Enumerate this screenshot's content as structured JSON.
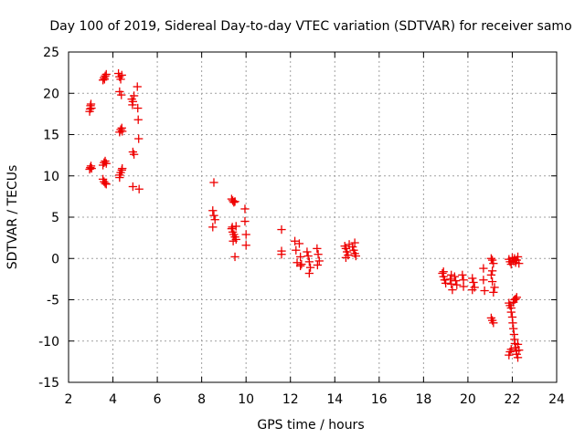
{
  "chart_data": {
    "type": "scatter",
    "title": "Day 100 of 2019, Sidereal Day-to-day VTEC variation (SDTVAR) for receiver samo",
    "xlabel": "GPS time / hours",
    "ylabel": "SDTVAR / TECUs",
    "xlim": [
      2,
      24
    ],
    "ylim": [
      -15,
      25
    ],
    "xticks": [
      2,
      4,
      6,
      8,
      10,
      12,
      14,
      16,
      18,
      20,
      22,
      24
    ],
    "yticks": [
      -15,
      -10,
      -5,
      0,
      5,
      10,
      15,
      20,
      25
    ],
    "grid": true,
    "legend": "none",
    "marker": "plus",
    "color": "#ee0000",
    "series": [
      {
        "name": "SDTVAR",
        "points": [
          [
            2.95,
            17.8
          ],
          [
            2.97,
            18.1
          ],
          [
            2.99,
            18.5
          ],
          [
            3.01,
            18.7
          ],
          [
            3.03,
            18.2
          ],
          [
            2.95,
            10.8
          ],
          [
            2.98,
            11.0
          ],
          [
            3.01,
            11.2
          ],
          [
            3.04,
            10.9
          ],
          [
            3.55,
            21.6
          ],
          [
            3.6,
            21.9
          ],
          [
            3.65,
            22.1
          ],
          [
            3.7,
            22.3
          ],
          [
            3.62,
            21.7
          ],
          [
            3.55,
            11.3
          ],
          [
            3.6,
            11.6
          ],
          [
            3.65,
            11.8
          ],
          [
            3.7,
            11.5
          ],
          [
            3.55,
            9.6
          ],
          [
            3.6,
            9.3
          ],
          [
            3.65,
            9.1
          ],
          [
            3.7,
            9.0
          ],
          [
            4.25,
            22.4
          ],
          [
            4.3,
            22.0
          ],
          [
            4.35,
            21.7
          ],
          [
            4.4,
            22.2
          ],
          [
            4.3,
            20.2
          ],
          [
            4.38,
            19.8
          ],
          [
            4.3,
            15.3
          ],
          [
            4.35,
            15.6
          ],
          [
            4.4,
            15.8
          ],
          [
            4.42,
            15.4
          ],
          [
            4.3,
            10.1
          ],
          [
            4.35,
            10.4
          ],
          [
            4.4,
            10.7
          ],
          [
            4.3,
            9.8
          ],
          [
            4.42,
            10.9
          ],
          [
            4.85,
            19.3
          ],
          [
            4.9,
            19.0
          ],
          [
            4.95,
            19.7
          ],
          [
            4.88,
            18.6
          ],
          [
            4.9,
            12.9
          ],
          [
            4.95,
            12.6
          ],
          [
            4.9,
            8.7
          ],
          [
            5.1,
            20.8
          ],
          [
            5.12,
            18.2
          ],
          [
            5.14,
            16.8
          ],
          [
            5.16,
            14.5
          ],
          [
            5.18,
            8.4
          ],
          [
            8.55,
            9.2
          ],
          [
            8.5,
            5.8
          ],
          [
            8.55,
            5.2
          ],
          [
            8.6,
            4.7
          ],
          [
            8.5,
            3.8
          ],
          [
            9.35,
            7.2
          ],
          [
            9.4,
            7.0
          ],
          [
            9.45,
            6.8
          ],
          [
            9.5,
            6.9
          ],
          [
            9.35,
            3.6
          ],
          [
            9.4,
            3.2
          ],
          [
            9.45,
            2.9
          ],
          [
            9.5,
            2.6
          ],
          [
            9.55,
            2.3
          ],
          [
            9.38,
            3.8
          ],
          [
            9.42,
            2.1
          ],
          [
            9.5,
            0.2
          ],
          [
            9.55,
            3.9
          ],
          [
            9.95,
            6.0
          ],
          [
            9.95,
            4.5
          ],
          [
            10.0,
            2.9
          ],
          [
            10.0,
            1.6
          ],
          [
            11.6,
            3.5
          ],
          [
            11.6,
            0.9
          ],
          [
            11.6,
            0.5
          ],
          [
            12.2,
            2.1
          ],
          [
            12.25,
            1.0
          ],
          [
            12.3,
            -0.5
          ],
          [
            12.4,
            1.8
          ],
          [
            12.45,
            0.2
          ],
          [
            12.5,
            -0.7
          ],
          [
            12.45,
            -0.9
          ],
          [
            12.75,
            0.8
          ],
          [
            12.8,
            0.3
          ],
          [
            12.85,
            -0.4
          ],
          [
            12.9,
            -1.1
          ],
          [
            12.85,
            -1.8
          ],
          [
            13.2,
            1.2
          ],
          [
            13.25,
            0.5
          ],
          [
            13.3,
            -0.3
          ],
          [
            13.22,
            -0.8
          ],
          [
            14.45,
            1.5
          ],
          [
            14.5,
            1.2
          ],
          [
            14.55,
            0.8
          ],
          [
            14.6,
            0.4
          ],
          [
            14.5,
            0.1
          ],
          [
            14.65,
            1.7
          ],
          [
            14.8,
            1.4
          ],
          [
            14.85,
            1.0
          ],
          [
            14.9,
            0.6
          ],
          [
            14.95,
            0.3
          ],
          [
            14.9,
            1.9
          ],
          [
            18.85,
            -1.8
          ],
          [
            18.9,
            -2.2
          ],
          [
            18.95,
            -2.6
          ],
          [
            19.0,
            -3.0
          ],
          [
            18.9,
            -1.6
          ],
          [
            19.2,
            -2.5
          ],
          [
            19.25,
            -3.1
          ],
          [
            19.3,
            -3.8
          ],
          [
            19.25,
            -2.0
          ],
          [
            19.4,
            -2.2
          ],
          [
            19.45,
            -2.7
          ],
          [
            19.5,
            -3.2
          ],
          [
            19.75,
            -2.0
          ],
          [
            19.8,
            -2.6
          ],
          [
            19.8,
            -3.4
          ],
          [
            20.2,
            -2.4
          ],
          [
            20.25,
            -2.9
          ],
          [
            20.3,
            -3.5
          ],
          [
            20.2,
            -3.8
          ],
          [
            20.7,
            -1.2
          ],
          [
            20.7,
            -2.6
          ],
          [
            20.75,
            -3.9
          ],
          [
            21.05,
            0.0
          ],
          [
            21.1,
            -0.2
          ],
          [
            21.15,
            -0.6
          ],
          [
            21.05,
            -2.0
          ],
          [
            21.1,
            -2.8
          ],
          [
            21.2,
            -3.5
          ],
          [
            21.15,
            -4.1
          ],
          [
            21.1,
            -1.5
          ],
          [
            21.05,
            -7.2
          ],
          [
            21.1,
            -7.5
          ],
          [
            21.15,
            -7.8
          ],
          [
            21.85,
            -0.1
          ],
          [
            21.9,
            -0.4
          ],
          [
            21.95,
            -0.7
          ],
          [
            22.0,
            0.1
          ],
          [
            22.05,
            -0.3
          ],
          [
            22.1,
            0.0
          ],
          [
            22.15,
            -0.5
          ],
          [
            22.2,
            -0.2
          ],
          [
            22.25,
            0.2
          ],
          [
            22.3,
            -0.6
          ],
          [
            21.85,
            -5.4
          ],
          [
            21.9,
            -5.7
          ],
          [
            21.95,
            -6.0
          ],
          [
            22.05,
            -5.3
          ],
          [
            22.1,
            -5.0
          ],
          [
            22.15,
            -4.9
          ],
          [
            22.2,
            -4.7
          ],
          [
            21.95,
            -6.5
          ],
          [
            22.0,
            -7.1
          ],
          [
            22.02,
            -7.8
          ],
          [
            22.05,
            -8.5
          ],
          [
            22.08,
            -9.2
          ],
          [
            22.1,
            -9.8
          ],
          [
            22.12,
            -10.3
          ],
          [
            22.15,
            -10.8
          ],
          [
            22.18,
            -11.2
          ],
          [
            22.2,
            -11.6
          ],
          [
            22.25,
            -12.0
          ],
          [
            22.3,
            -11.1
          ],
          [
            22.25,
            -10.4
          ],
          [
            21.85,
            -11.7
          ],
          [
            21.9,
            -11.3
          ],
          [
            21.95,
            -11.0
          ]
        ]
      }
    ]
  }
}
